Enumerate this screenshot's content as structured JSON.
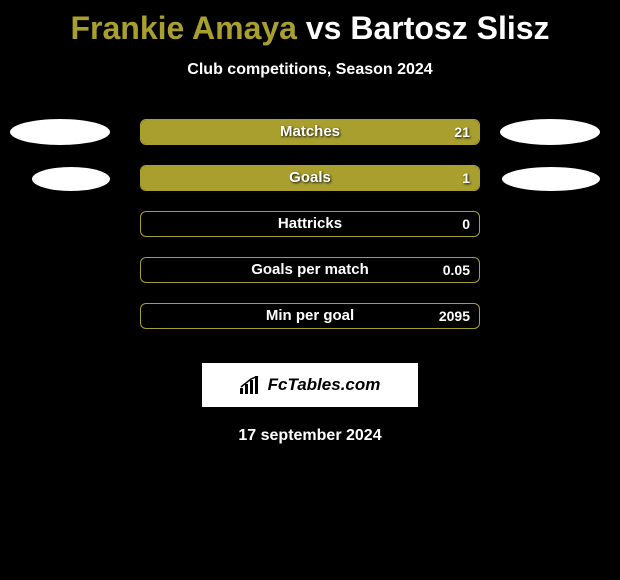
{
  "title": {
    "player1": "Frankie Amaya",
    "vs": "vs",
    "player2": "Bartosz Slisz",
    "color_player1": "#a89f2f",
    "color_vs": "#ffffff",
    "color_player2": "#ffffff",
    "fontsize": 32
  },
  "subtitle": {
    "text": "Club competitions, Season 2024",
    "color": "#ffffff",
    "fontsize": 16
  },
  "chart": {
    "background": "#000000",
    "bar_track_width": 340,
    "bar_track_height": 26,
    "bar_border_color": "#a89f2f",
    "bar_fill_color": "#a89f2f",
    "label_color": "#ffffff",
    "value_color": "#ffffff",
    "label_fontsize": 15,
    "value_fontsize": 14,
    "rows": [
      {
        "label": "Matches",
        "left_value": "",
        "right_value": "21",
        "left_pct": 0,
        "right_pct": 100,
        "show_left_ellipse": true,
        "show_right_ellipse": true,
        "ellipse_size": "large"
      },
      {
        "label": "Goals",
        "left_value": "",
        "right_value": "1",
        "left_pct": 0,
        "right_pct": 100,
        "show_left_ellipse": true,
        "show_right_ellipse": true,
        "ellipse_size": "small"
      },
      {
        "label": "Hattricks",
        "left_value": "",
        "right_value": "0",
        "left_pct": 0,
        "right_pct": 0,
        "show_left_ellipse": false,
        "show_right_ellipse": false
      },
      {
        "label": "Goals per match",
        "left_value": "",
        "right_value": "0.05",
        "left_pct": 0,
        "right_pct": 0,
        "show_left_ellipse": false,
        "show_right_ellipse": false
      },
      {
        "label": "Min per goal",
        "left_value": "",
        "right_value": "2095",
        "left_pct": 0,
        "right_pct": 0,
        "show_left_ellipse": false,
        "show_right_ellipse": false
      }
    ]
  },
  "logo": {
    "text": "FcTables.com",
    "background": "#ffffff",
    "text_color": "#000000",
    "fontsize": 17
  },
  "date": {
    "text": "17 september 2024",
    "color": "#ffffff",
    "fontsize": 16
  },
  "ellipse": {
    "color": "#ffffff"
  }
}
